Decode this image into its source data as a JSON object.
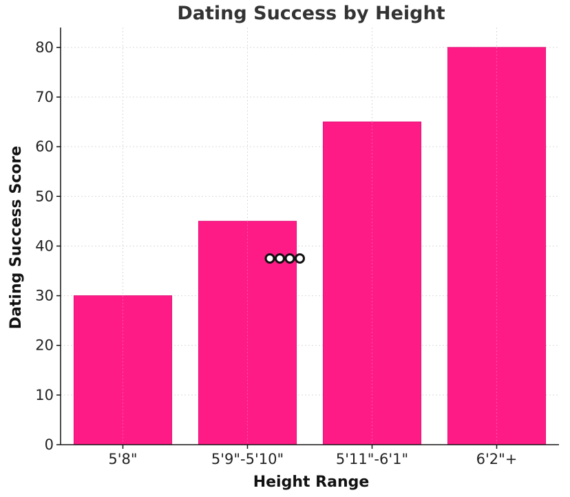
{
  "colors": {
    "bar": "#ff1b86",
    "bar_edge": "#e0157a",
    "marker_fill": "#ffffff",
    "marker_stroke": "#111111"
  },
  "chart_data": {
    "type": "bar",
    "title": "Dating Success by Height",
    "xlabel": "Height Range",
    "ylabel": "Dating Success Score",
    "categories": [
      "5'8\"",
      "5'9\"-5'10\"",
      "5'11\"-6'1\"",
      "6'2\"+"
    ],
    "values": [
      30,
      45,
      65,
      80
    ],
    "ylim": [
      0,
      84
    ],
    "yticks": [
      0,
      10,
      20,
      30,
      40,
      50,
      60,
      70,
      80
    ],
    "grid": true,
    "legend": "none"
  },
  "annotation": {
    "type": "marker-cluster",
    "count": 4,
    "y_value": 37.5
  }
}
